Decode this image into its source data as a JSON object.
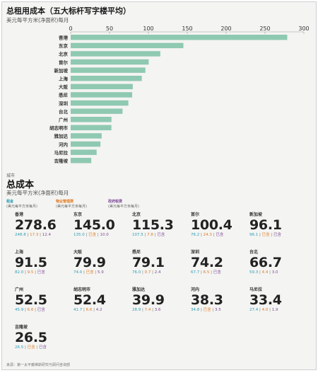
{
  "chart_data": [
    {
      "type": "bar",
      "orientation": "horizontal",
      "title": "总租用成本（五大标杆写字楼平均）",
      "subtitle": "美元每平方米(净面积)每月",
      "xlim": [
        0,
        300
      ],
      "xticks": [
        0,
        50,
        100,
        150,
        200,
        250,
        300
      ],
      "grid": false,
      "categories": [
        "香港",
        "东京",
        "北京",
        "首尔",
        "新加坡",
        "上海",
        "大阪",
        "悉尼",
        "深圳",
        "台北",
        "广州",
        "胡志明市",
        "雅加达",
        "河内",
        "马尼拉",
        "吉隆坡"
      ],
      "values": [
        278.6,
        145.0,
        115.3,
        100.4,
        96.1,
        91.5,
        79.9,
        79.1,
        74.2,
        66.7,
        52.5,
        52.4,
        39.9,
        38.3,
        33.4,
        26.5
      ],
      "bar_color": "#8fc9b2"
    },
    {
      "type": "table",
      "columns": [
        "城市",
        "总成本",
        "租金",
        "物业管理费",
        "政府税费"
      ],
      "rows": [
        [
          "香港",
          278.6,
          248.8,
          17.3,
          12.4
        ],
        [
          "东京",
          145.0,
          135.0,
          0,
          10.0
        ],
        [
          "北京",
          115.3,
          107.5,
          7.8,
          0
        ],
        [
          "首尔",
          100.4,
          76.2,
          24.3,
          0
        ],
        [
          "新加坡",
          96.1,
          96.1,
          0,
          0
        ],
        [
          "上海",
          91.5,
          82.0,
          9.5,
          0
        ],
        [
          "大阪",
          79.9,
          74.0,
          0,
          5.9
        ],
        [
          "悉尼",
          79.1,
          76.0,
          0.7,
          2.4
        ],
        [
          "深圳",
          74.2,
          67.7,
          6.5,
          0
        ],
        [
          "台北",
          66.7,
          59.3,
          4.4,
          3.0
        ],
        [
          "广州",
          52.5,
          45.9,
          6.6,
          0
        ],
        [
          "胡志明市",
          52.4,
          41.7,
          6.6,
          4.2
        ],
        [
          "雅加达",
          39.9,
          28.9,
          7.4,
          3.6
        ],
        [
          "河内",
          38.3,
          34.8,
          0,
          3.5
        ],
        [
          "马尼拉",
          33.4,
          27.4,
          4.0,
          1.9
        ],
        [
          "吉隆坡",
          26.5,
          26.5,
          0,
          0
        ]
      ]
    }
  ],
  "total_section": {
    "tag": "城市",
    "title": "总成本",
    "subtitle": "美元每平方米(净面积)每月",
    "legend": [
      {
        "label": "租金",
        "unit": "(美元每平方米每月)",
        "color": "#2a9db5"
      },
      {
        "label": "物业管理费",
        "unit": "(美元每平方米每月)",
        "color": "#e07a1f"
      },
      {
        "label": "政府税费",
        "unit": "(美元每平方米每月)",
        "color": "#7d4a96"
      }
    ],
    "included_label": "已含",
    "cities": [
      {
        "name": "香港",
        "total": "278.6",
        "parts": [
          "248.8",
          "17.3",
          "12.4"
        ]
      },
      {
        "name": "东京",
        "total": "145.0",
        "parts": [
          "135.0",
          "已含",
          "10.0"
        ]
      },
      {
        "name": "北京",
        "total": "115.3",
        "parts": [
          "107.5",
          "7.8",
          "已含"
        ]
      },
      {
        "name": "首尔",
        "total": "100.4",
        "parts": [
          "76.2",
          "24.3",
          "已含"
        ]
      },
      {
        "name": "新加坡",
        "total": "96.1",
        "parts": [
          "96.1",
          "已含",
          "已含"
        ]
      },
      {
        "name": "上海",
        "total": "91.5",
        "parts": [
          "82.0",
          "9.5",
          "已含"
        ]
      },
      {
        "name": "大阪",
        "total": "79.9",
        "parts": [
          "74.0",
          "已含",
          "5.9"
        ]
      },
      {
        "name": "悉尼",
        "total": "79.1",
        "parts": [
          "76.0",
          "0.7",
          "2.4"
        ]
      },
      {
        "name": "深圳",
        "total": "74.2",
        "parts": [
          "67.7",
          "6.5",
          "已含"
        ]
      },
      {
        "name": "台北",
        "total": "66.7",
        "parts": [
          "59.3",
          "4.4",
          "3.0"
        ]
      },
      {
        "name": "广州",
        "total": "52.5",
        "parts": [
          "45.9",
          "6.6",
          "已含"
        ]
      },
      {
        "name": "胡志明市",
        "total": "52.4",
        "parts": [
          "41.7",
          "6.6",
          "4.2"
        ]
      },
      {
        "name": "雅加达",
        "total": "39.9",
        "parts": [
          "28.9",
          "7.4",
          "3.6"
        ]
      },
      {
        "name": "河内",
        "total": "38.3",
        "parts": [
          "34.8",
          "已含",
          "3.5"
        ]
      },
      {
        "name": "马尼拉",
        "total": "33.4",
        "parts": [
          "27.4",
          "4.0",
          "1.9"
        ]
      },
      {
        "name": "吉隆坡",
        "total": "26.5",
        "parts": [
          "26.5",
          "已含",
          "已含"
        ]
      }
    ],
    "footnote": "来源：第一太平戴维斯研究与顾问咨询部"
  }
}
